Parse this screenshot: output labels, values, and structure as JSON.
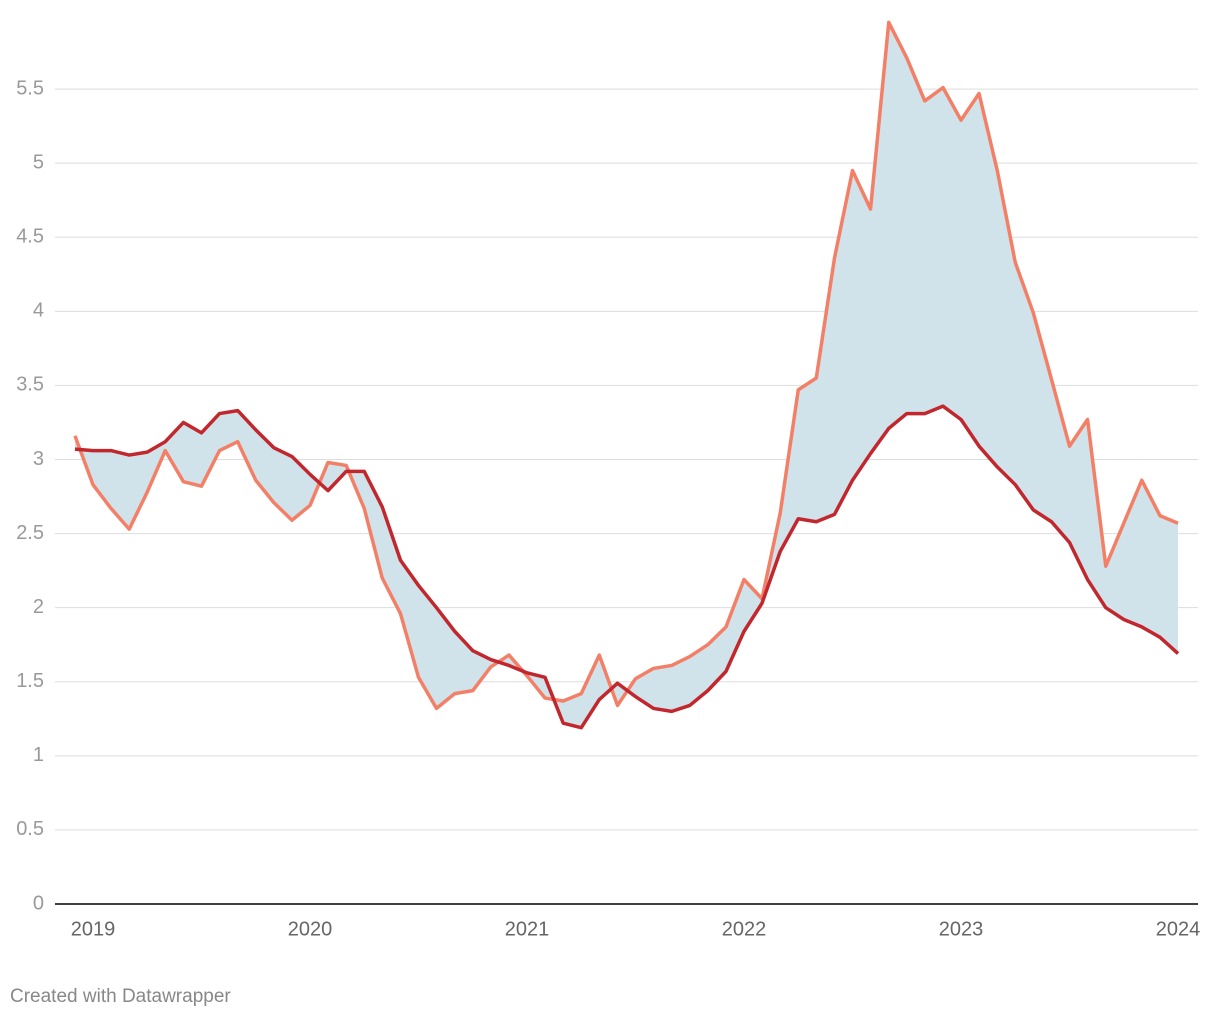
{
  "chart_data": {
    "type": "line",
    "x": [
      2018.917,
      2019,
      2019.083,
      2019.167,
      2019.25,
      2019.333,
      2019.417,
      2019.5,
      2019.583,
      2019.667,
      2019.75,
      2019.833,
      2019.917,
      2020,
      2020.083,
      2020.167,
      2020.25,
      2020.333,
      2020.417,
      2020.5,
      2020.583,
      2020.667,
      2020.75,
      2020.833,
      2020.917,
      2021,
      2021.083,
      2021.167,
      2021.25,
      2021.333,
      2021.417,
      2021.5,
      2021.583,
      2021.667,
      2021.75,
      2021.833,
      2021.917,
      2022,
      2022.083,
      2022.167,
      2022.25,
      2022.333,
      2022.417,
      2022.5,
      2022.583,
      2022.667,
      2022.75,
      2022.833,
      2022.917,
      2023,
      2023.083,
      2023.167,
      2023.25,
      2023.333,
      2023.417,
      2023.5,
      2023.583,
      2023.667,
      2023.75,
      2023.833,
      2023.917,
      2024
    ],
    "series": [
      {
        "color": "#f47f67",
        "values": [
          3.16,
          2.83,
          2.67,
          2.53,
          2.78,
          3.06,
          2.85,
          2.82,
          3.06,
          3.12,
          2.86,
          2.71,
          2.59,
          2.69,
          2.98,
          2.96,
          2.67,
          2.2,
          1.96,
          1.53,
          1.32,
          1.42,
          1.44,
          1.6,
          1.68,
          1.54,
          1.39,
          1.37,
          1.42,
          1.68,
          1.34,
          1.52,
          1.59,
          1.61,
          1.67,
          1.75,
          1.87,
          2.19,
          2.06,
          2.64,
          3.47,
          3.55,
          4.36,
          4.95,
          4.69,
          5.95,
          5.71,
          5.42,
          5.51,
          5.29,
          5.47,
          4.95,
          4.33,
          3.99,
          3.54,
          3.09,
          3.27,
          2.28,
          2.57,
          2.86,
          2.62,
          2.57
        ]
      },
      {
        "color": "#c1272d",
        "values": [
          3.07,
          3.06,
          3.06,
          3.03,
          3.05,
          3.12,
          3.25,
          3.18,
          3.31,
          3.33,
          3.2,
          3.08,
          3.02,
          2.9,
          2.79,
          2.92,
          2.92,
          2.68,
          2.32,
          2.15,
          2.0,
          1.84,
          1.71,
          1.65,
          1.61,
          1.56,
          1.53,
          1.22,
          1.19,
          1.38,
          1.49,
          1.4,
          1.32,
          1.3,
          1.34,
          1.44,
          1.57,
          1.84,
          2.03,
          2.38,
          2.6,
          2.58,
          2.63,
          2.86,
          3.04,
          3.21,
          3.31,
          3.31,
          3.36,
          3.27,
          3.09,
          2.95,
          2.83,
          2.66,
          2.58,
          2.44,
          2.19,
          2.0,
          1.92,
          1.87,
          1.8,
          1.69
        ]
      }
    ],
    "band_color": "#d0e3ea",
    "xlim": [
      2018.825,
      2024.092
    ],
    "xticks": [
      2019,
      2020,
      2021,
      2022,
      2023,
      2024
    ],
    "ylim": [
      0,
      6
    ],
    "yticks": [
      0,
      0.5,
      1,
      1.5,
      2,
      2.5,
      3,
      3.5,
      4,
      4.5,
      5,
      5.5
    ],
    "grid": true,
    "credit": "Created with Datawrapper"
  }
}
